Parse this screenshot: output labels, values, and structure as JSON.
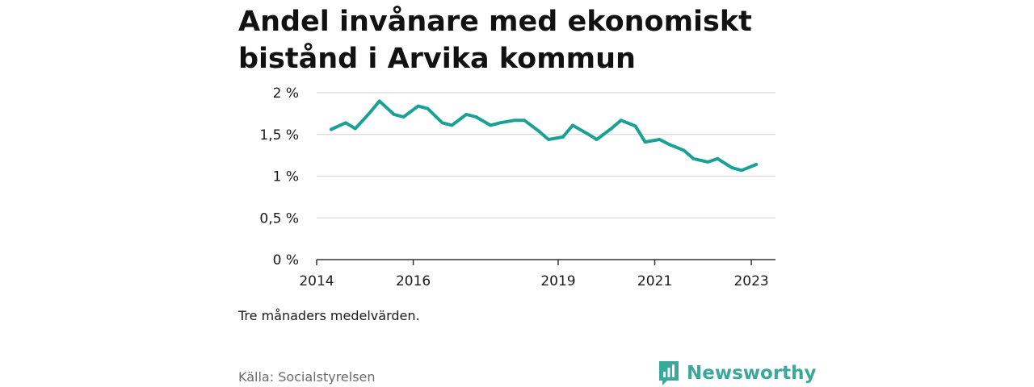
{
  "title": "Andel invånare med ekonomiskt bistånd i Arvika kommun",
  "note": "Tre månaders medelvärden.",
  "source": "Källa: Socialstyrelsen",
  "brand": {
    "name": "Newsworthy",
    "icon": "newsworthy-logo-icon",
    "color": "#3aa89a"
  },
  "chart_data": {
    "type": "line",
    "color": "#1aa195",
    "ylim": [
      0,
      2
    ],
    "xlim": [
      2014,
      2023.5
    ],
    "yticks": [
      {
        "value": 0,
        "label": "0 %"
      },
      {
        "value": 0.5,
        "label": "0,5 %"
      },
      {
        "value": 1,
        "label": "1 %"
      },
      {
        "value": 1.5,
        "label": "1,5 %"
      },
      {
        "value": 2,
        "label": "2 %"
      }
    ],
    "xticks": [
      {
        "value": 2014,
        "label": "2014"
      },
      {
        "value": 2016,
        "label": "2016"
      },
      {
        "value": 2019,
        "label": "2019"
      },
      {
        "value": 2021,
        "label": "2021"
      },
      {
        "value": 2023,
        "label": "2023"
      }
    ],
    "grid": true,
    "series": [
      {
        "x": [
          2014.3,
          2014.6,
          2014.8,
          2015.1,
          2015.3,
          2015.6,
          2015.8,
          2016.1,
          2016.3,
          2016.6,
          2016.8,
          2017.1,
          2017.3,
          2017.6,
          2017.8,
          2018.1,
          2018.3,
          2018.6,
          2018.8,
          2019.1,
          2019.3,
          2019.6,
          2019.8,
          2020.1,
          2020.3,
          2020.6,
          2020.8,
          2021.1,
          2021.3,
          2021.6,
          2021.8,
          2022.1,
          2022.3,
          2022.6,
          2022.8,
          2023.1
        ],
        "y": [
          1.56,
          1.64,
          1.57,
          1.76,
          1.9,
          1.74,
          1.71,
          1.84,
          1.81,
          1.64,
          1.61,
          1.74,
          1.71,
          1.61,
          1.64,
          1.67,
          1.67,
          1.54,
          1.44,
          1.47,
          1.61,
          1.51,
          1.44,
          1.57,
          1.67,
          1.6,
          1.41,
          1.44,
          1.38,
          1.31,
          1.21,
          1.17,
          1.21,
          1.1,
          1.07,
          1.14
        ]
      }
    ]
  }
}
